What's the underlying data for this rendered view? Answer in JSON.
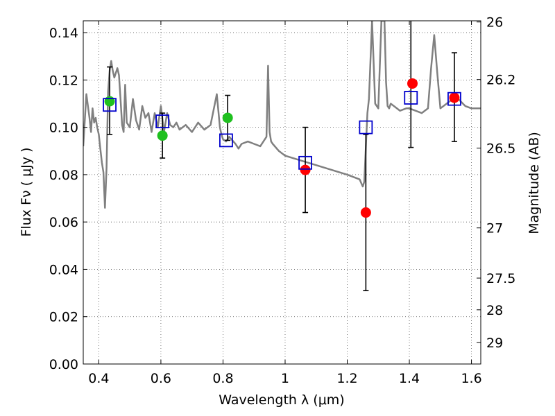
{
  "chart_data": {
    "type": "scatter",
    "xlabel": "Wavelength  λ (μm)",
    "ylabel": "Flux  Fν  ( μJy )",
    "ylabel_right": "Magnitude (AB)",
    "xlim": [
      0.35,
      1.63
    ],
    "ylim": [
      0.0,
      0.145
    ],
    "grid": true,
    "x_ticks": [
      0.4,
      0.6,
      0.8,
      1.0,
      1.2,
      1.4,
      1.6
    ],
    "x_tick_labels": [
      "0.4",
      "0.6",
      "0.8",
      "1",
      "1.2",
      "1.4",
      "1.6"
    ],
    "y_ticks": [
      0.0,
      0.02,
      0.04,
      0.06,
      0.08,
      0.1,
      0.12,
      0.14
    ],
    "y_tick_labels": [
      "0.00",
      "0.02",
      "0.04",
      "0.06",
      "0.08",
      "0.10",
      "0.12",
      "0.14"
    ],
    "right_ticks": [
      {
        "label": "26",
        "flux": 0.1445
      },
      {
        "label": "26.2",
        "flux": 0.1202
      },
      {
        "label": "26.5",
        "flux": 0.0912
      },
      {
        "label": "27",
        "flux": 0.0575
      },
      {
        "label": "27.5",
        "flux": 0.0363
      },
      {
        "label": "28",
        "flux": 0.0229
      },
      {
        "label": "29",
        "flux": 0.0091
      }
    ],
    "colors": {
      "model": "#808080",
      "green_points": "#1fc01f",
      "red_points": "#ff0000",
      "squares": "#0000cc",
      "errorbars": "#000000"
    },
    "series": [
      {
        "type": "line",
        "x": [
          0.35,
          0.36,
          0.37,
          0.375,
          0.38,
          0.385,
          0.39,
          0.395,
          0.4,
          0.405,
          0.41,
          0.415,
          0.42,
          0.425,
          0.43,
          0.435,
          0.44,
          0.445,
          0.45,
          0.455,
          0.46,
          0.465,
          0.47,
          0.475,
          0.48,
          0.485,
          0.49,
          0.5,
          0.51,
          0.52,
          0.53,
          0.54,
          0.55,
          0.56,
          0.57,
          0.58,
          0.59,
          0.6,
          0.61,
          0.62,
          0.63,
          0.64,
          0.65,
          0.66,
          0.68,
          0.7,
          0.72,
          0.74,
          0.76,
          0.78,
          0.79,
          0.795,
          0.8,
          0.81,
          0.82,
          0.84,
          0.85,
          0.86,
          0.88,
          0.9,
          0.92,
          0.94,
          0.945,
          0.95,
          0.955,
          0.96,
          0.98,
          1.0,
          1.05,
          1.1,
          1.15,
          1.2,
          1.22,
          1.24,
          1.25,
          1.255,
          1.26,
          1.265,
          1.27,
          1.28,
          1.29,
          1.3,
          1.31,
          1.32,
          1.325,
          1.33,
          1.335,
          1.34,
          1.35,
          1.37,
          1.39,
          1.4,
          1.42,
          1.44,
          1.46,
          1.47,
          1.48,
          1.49,
          1.5,
          1.52,
          1.55,
          1.58,
          1.6,
          1.63
        ],
        "y": [
          0.092,
          0.114,
          0.104,
          0.098,
          0.108,
          0.102,
          0.104,
          0.1,
          0.097,
          0.091,
          0.085,
          0.081,
          0.066,
          0.083,
          0.115,
          0.124,
          0.128,
          0.124,
          0.121,
          0.123,
          0.125,
          0.122,
          0.112,
          0.101,
          0.098,
          0.118,
          0.102,
          0.1,
          0.112,
          0.103,
          0.099,
          0.109,
          0.104,
          0.106,
          0.098,
          0.106,
          0.1,
          0.109,
          0.098,
          0.106,
          0.101,
          0.1,
          0.102,
          0.099,
          0.101,
          0.098,
          0.102,
          0.099,
          0.101,
          0.114,
          0.1,
          0.097,
          0.095,
          0.094,
          0.096,
          0.093,
          0.091,
          0.093,
          0.094,
          0.093,
          0.092,
          0.096,
          0.126,
          0.098,
          0.094,
          0.093,
          0.09,
          0.088,
          0.086,
          0.084,
          0.082,
          0.08,
          0.079,
          0.078,
          0.075,
          0.077,
          0.092,
          0.106,
          0.112,
          0.145,
          0.11,
          0.108,
          0.145,
          0.145,
          0.119,
          0.109,
          0.108,
          0.11,
          0.109,
          0.107,
          0.108,
          0.108,
          0.107,
          0.106,
          0.108,
          0.125,
          0.139,
          0.123,
          0.108,
          0.11,
          0.113,
          0.109,
          0.108,
          0.108
        ]
      },
      {
        "type": "scatter",
        "marker": "circle",
        "x": [
          0.435,
          0.605,
          0.815
        ],
        "y": [
          0.111,
          0.0965,
          0.104
        ]
      },
      {
        "type": "scatter",
        "marker": "circle",
        "x": [
          1.065,
          1.26,
          1.41,
          1.545
        ],
        "y": [
          0.082,
          0.064,
          0.1185,
          0.1125
        ],
        "yerr": [
          0.018,
          0.033,
          0.027,
          0.019
        ]
      },
      {
        "type": "scatter",
        "marker": "open-square",
        "x": [
          0.435,
          0.605,
          0.81,
          1.065,
          1.26,
          1.405,
          1.545
        ],
        "y": [
          0.1095,
          0.1025,
          0.0945,
          0.085,
          0.1,
          0.1125,
          0.112
        ]
      },
      {
        "type": "errorbar",
        "x": [
          0.435,
          0.605,
          0.815,
          1.065,
          1.26,
          1.405,
          1.545
        ],
        "y": [
          0.111,
          0.0965,
          0.104,
          0.082,
          0.064,
          0.1185,
          0.1125
        ],
        "yerr_low": [
          0.014,
          0.0095,
          0.0095,
          0.018,
          0.033,
          0.027,
          0.0185
        ],
        "yerr_high": [
          0.0145,
          0.0095,
          0.0095,
          0.018,
          0.033,
          0.027,
          0.019
        ]
      }
    ]
  }
}
